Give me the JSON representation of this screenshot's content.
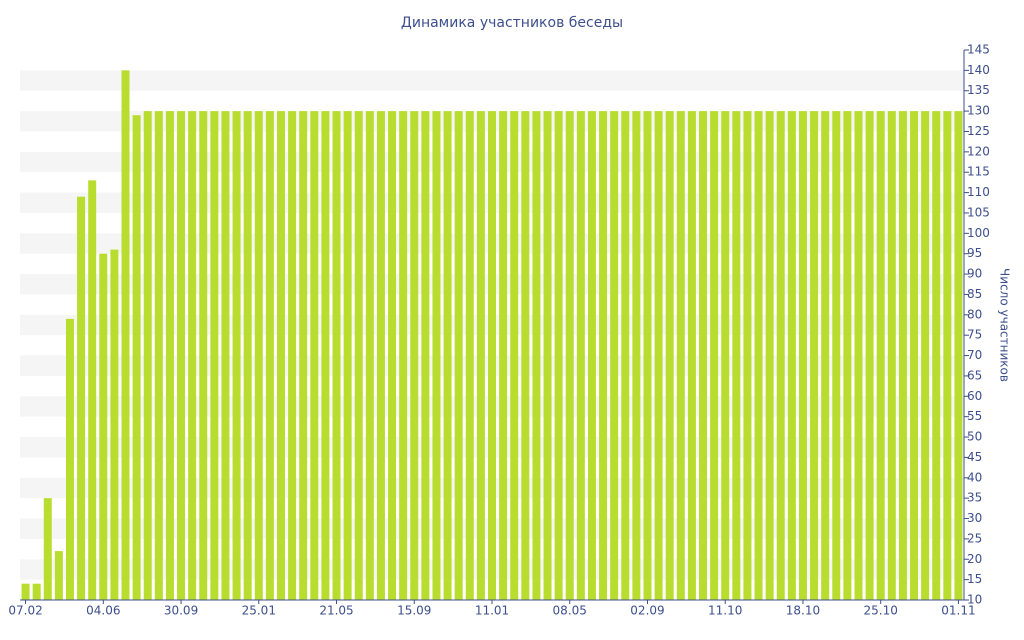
{
  "chart_data": {
    "type": "bar",
    "title": "Динамика участников беседы",
    "y_label": "Число участников",
    "categories": [
      "07.02",
      null,
      null,
      null,
      null,
      null,
      null,
      "04.06",
      null,
      null,
      null,
      null,
      null,
      null,
      "30.09",
      null,
      null,
      null,
      null,
      null,
      null,
      "25.01",
      null,
      null,
      null,
      null,
      null,
      null,
      "21.05",
      null,
      null,
      null,
      null,
      null,
      null,
      "15.09",
      null,
      null,
      null,
      null,
      null,
      null,
      "11.01",
      null,
      null,
      null,
      null,
      null,
      null,
      "08.05",
      null,
      null,
      null,
      null,
      null,
      null,
      "02.09",
      null,
      null,
      null,
      null,
      null,
      null,
      "11.10",
      null,
      null,
      null,
      null,
      null,
      null,
      "18.10",
      null,
      null,
      null,
      null,
      null,
      null,
      "25.10",
      null,
      null,
      null,
      null,
      null,
      null,
      "01.11"
    ],
    "values": [
      14,
      14,
      35,
      22,
      79,
      109,
      113,
      95,
      96,
      140,
      129,
      130,
      130,
      130,
      130,
      130,
      130,
      130,
      130,
      130,
      130,
      130,
      130,
      130,
      130,
      130,
      130,
      130,
      130,
      130,
      130,
      130,
      130,
      130,
      130,
      130,
      130,
      130,
      130,
      130,
      130,
      130,
      130,
      130,
      130,
      130,
      130,
      130,
      130,
      130,
      130,
      130,
      130,
      130,
      130,
      130,
      130,
      130,
      130,
      130,
      130,
      130,
      130,
      130,
      130,
      130,
      130,
      130,
      130,
      130,
      130,
      130,
      130,
      130,
      130,
      130,
      130,
      130,
      130,
      130,
      130,
      130,
      130,
      130,
      130
    ],
    "color": "#b8dd2e",
    "ylim": [
      10,
      145
    ],
    "yticks": [
      10,
      15,
      20,
      25,
      30,
      35,
      40,
      45,
      50,
      55,
      60,
      65,
      70,
      75,
      80,
      85,
      90,
      95,
      100,
      105,
      110,
      115,
      120,
      125,
      130,
      135,
      140,
      145
    ],
    "grid": true
  }
}
